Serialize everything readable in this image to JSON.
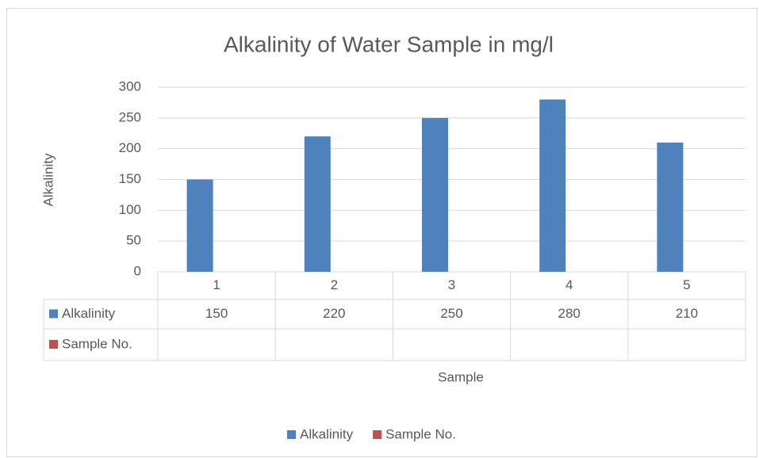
{
  "chart_data": {
    "type": "bar",
    "title": "Alkalinity of Water Sample in mg/l",
    "xlabel": "Sample",
    "ylabel": "Alkalinity",
    "categories": [
      "1",
      "2",
      "3",
      "4",
      "5"
    ],
    "series": [
      {
        "name": "Alkalinity",
        "color": "#4f81bd",
        "values": [
          150,
          220,
          250,
          280,
          210
        ]
      },
      {
        "name": "Sample No.",
        "color": "#c0504d",
        "values": [
          null,
          null,
          null,
          null,
          null
        ]
      }
    ],
    "ylim": [
      0,
      300
    ],
    "yticks": [
      0,
      50,
      100,
      150,
      200,
      250,
      300
    ],
    "grid": true,
    "legend": "bottom"
  }
}
